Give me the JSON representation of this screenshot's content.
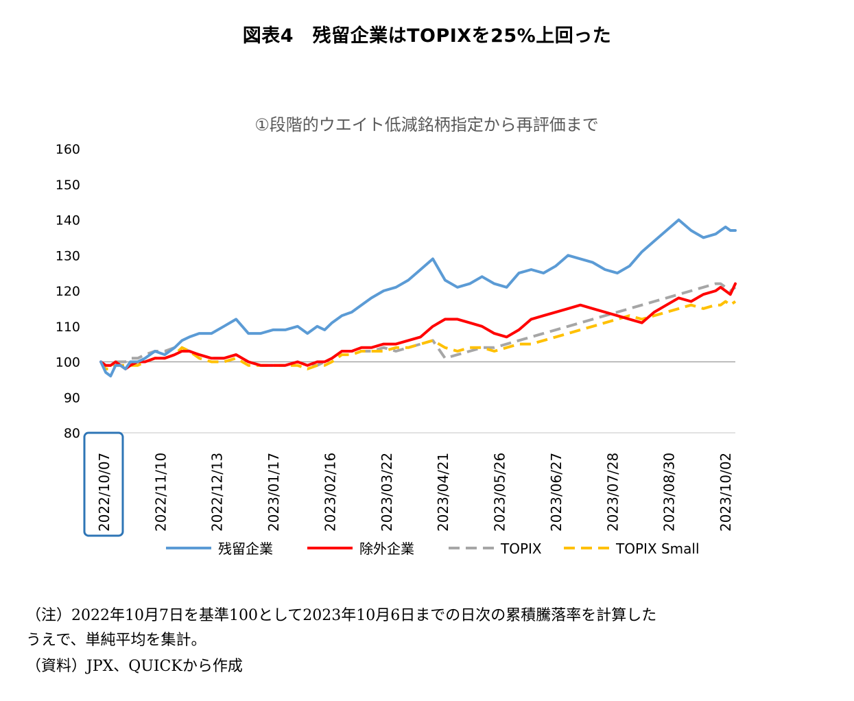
{
  "figure_title": "図表4　残留企業はTOPIXを25%上回った",
  "notes": [
    "（注）2022年10月7日を基準100として2023年10月6日までの日次の累積騰落率を計算した",
    "うえで、単純平均を集計。",
    "（資料）JPX、QUICKから作成"
  ],
  "chart_data": {
    "type": "line",
    "title": "①段階的ウエイト低減銘柄指定から再評価まで",
    "ylim": [
      80,
      160
    ],
    "yticks": [
      80,
      90,
      100,
      110,
      120,
      130,
      140,
      150,
      160
    ],
    "reference_line": 100,
    "x_ticks": [
      "2022/10/07",
      "2022/11/10",
      "2022/12/13",
      "2023/01/17",
      "2023/02/16",
      "2023/03/22",
      "2023/04/21",
      "2023/05/26",
      "2023/06/27",
      "2023/07/28",
      "2023/08/30",
      "2023/10/02"
    ],
    "highlight_tick": "2022/10/07",
    "grid": false,
    "legend_position": "bottom",
    "colors": {
      "axis": "#d9d9d9",
      "title": "#595959",
      "highlight": "#2e75b6"
    },
    "series": [
      {
        "name": "残留企業",
        "color": "#5b9bd5",
        "dash": "solid",
        "x": [
          0,
          2,
          4,
          6,
          8,
          10,
          12,
          15,
          18,
          22,
          26,
          30,
          33,
          36,
          40,
          45,
          50,
          55,
          60,
          65,
          70,
          75,
          80,
          84,
          88,
          91,
          94,
          98,
          102,
          106,
          110,
          115,
          120,
          125,
          130,
          135,
          140,
          145,
          150,
          155,
          160,
          165,
          170,
          175,
          180,
          185,
          190,
          195,
          200,
          205,
          210,
          215,
          220,
          225,
          230,
          235,
          240,
          245,
          250,
          252,
          254,
          256,
          258
        ],
        "y": [
          100,
          97,
          96,
          99,
          99,
          98,
          100,
          100,
          101,
          103,
          102,
          104,
          106,
          107,
          108,
          108,
          110,
          112,
          108,
          108,
          109,
          109,
          110,
          108,
          110,
          109,
          111,
          113,
          114,
          116,
          118,
          120,
          121,
          123,
          126,
          129,
          123,
          121,
          122,
          124,
          122,
          121,
          125,
          126,
          125,
          127,
          130,
          129,
          128,
          126,
          125,
          127,
          131,
          134,
          137,
          140,
          137,
          135,
          136,
          137,
          138,
          137,
          137
        ]
      },
      {
        "name": "除外企業",
        "color": "#ff0000",
        "dash": "solid",
        "x": [
          0,
          2,
          4,
          6,
          8,
          10,
          12,
          15,
          18,
          22,
          26,
          30,
          33,
          36,
          40,
          45,
          50,
          55,
          60,
          65,
          70,
          75,
          80,
          84,
          88,
          91,
          94,
          98,
          102,
          106,
          110,
          115,
          120,
          125,
          130,
          135,
          140,
          145,
          150,
          155,
          160,
          165,
          170,
          175,
          180,
          185,
          190,
          195,
          200,
          205,
          210,
          215,
          220,
          225,
          230,
          235,
          240,
          245,
          250,
          252,
          254,
          256,
          258
        ],
        "y": [
          100,
          99,
          99,
          100,
          99,
          98,
          99,
          100,
          100,
          101,
          101,
          102,
          103,
          103,
          102,
          101,
          101,
          102,
          100,
          99,
          99,
          99,
          100,
          99,
          100,
          100,
          101,
          103,
          103,
          104,
          104,
          105,
          105,
          106,
          107,
          110,
          112,
          112,
          111,
          110,
          108,
          107,
          109,
          112,
          113,
          114,
          115,
          116,
          115,
          114,
          113,
          112,
          111,
          114,
          116,
          118,
          117,
          119,
          120,
          121,
          120,
          119,
          122
        ]
      },
      {
        "name": "TOPIX",
        "color": "#a6a6a6",
        "dash": "dashed",
        "x": [
          0,
          2,
          4,
          6,
          8,
          10,
          12,
          15,
          18,
          22,
          26,
          30,
          33,
          36,
          40,
          45,
          50,
          55,
          60,
          65,
          70,
          75,
          80,
          84,
          88,
          91,
          94,
          98,
          102,
          106,
          110,
          115,
          120,
          125,
          130,
          135,
          140,
          145,
          150,
          155,
          160,
          165,
          170,
          175,
          180,
          185,
          190,
          195,
          200,
          205,
          210,
          215,
          220,
          225,
          230,
          235,
          240,
          245,
          250,
          252,
          254,
          256,
          258
        ],
        "y": [
          100,
          99,
          99,
          100,
          100,
          100,
          101,
          101,
          102,
          103,
          103,
          104,
          104,
          103,
          102,
          101,
          101,
          102,
          100,
          99,
          99,
          99,
          100,
          99,
          99,
          100,
          101,
          103,
          103,
          103,
          103,
          104,
          103,
          104,
          105,
          106,
          101,
          102,
          103,
          104,
          104,
          105,
          106,
          107,
          108,
          109,
          110,
          111,
          112,
          113,
          114,
          115,
          116,
          117,
          118,
          119,
          120,
          121,
          122,
          122,
          121,
          120,
          121
        ]
      },
      {
        "name": "TOPIX Small",
        "color": "#ffc000",
        "dash": "dashed",
        "x": [
          0,
          2,
          4,
          6,
          8,
          10,
          12,
          15,
          18,
          22,
          26,
          30,
          33,
          36,
          40,
          45,
          50,
          55,
          60,
          65,
          70,
          75,
          80,
          84,
          88,
          91,
          94,
          98,
          102,
          106,
          110,
          115,
          120,
          125,
          130,
          135,
          140,
          145,
          150,
          155,
          160,
          165,
          170,
          175,
          180,
          185,
          190,
          195,
          200,
          205,
          210,
          215,
          220,
          225,
          230,
          235,
          240,
          245,
          250,
          252,
          254,
          256,
          258
        ],
        "y": [
          100,
          98,
          98,
          99,
          99,
          99,
          99,
          99,
          100,
          101,
          101,
          102,
          104,
          103,
          101,
          100,
          100,
          101,
          99,
          99,
          99,
          99,
          99,
          98,
          99,
          99,
          100,
          102,
          102,
          103,
          103,
          103,
          104,
          104,
          105,
          106,
          104,
          103,
          104,
          104,
          103,
          104,
          105,
          105,
          106,
          107,
          108,
          109,
          110,
          111,
          112,
          113,
          112,
          113,
          114,
          115,
          116,
          115,
          116,
          116,
          117,
          116,
          117
        ]
      }
    ]
  }
}
